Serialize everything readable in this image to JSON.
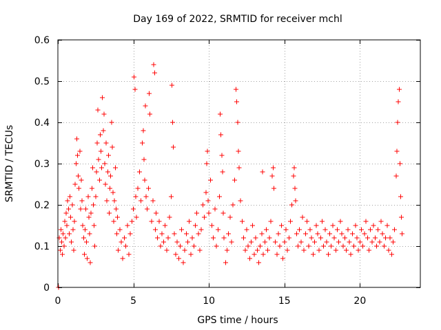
{
  "chart_data": {
    "type": "scatter",
    "title": "Day 169 of 2022, SRMTID for receiver mchl",
    "xlabel": "GPS time / hours",
    "ylabel": "SRMTID / TECUs",
    "xlim": [
      0,
      24
    ],
    "ylim": [
      0,
      0.6
    ],
    "xticks": [
      0,
      5,
      10,
      15,
      20
    ],
    "yticks": [
      0,
      0.1,
      0.2,
      0.3,
      0.4,
      0.5,
      0.6
    ],
    "xtick_labels": [
      "0",
      "5",
      "10",
      "15",
      "20"
    ],
    "ytick_labels": [
      "0",
      "0.1",
      "0.2",
      "0.3",
      "0.4",
      "0.5",
      "0.6"
    ],
    "grid": true,
    "marker": "+",
    "color": "#ff0000",
    "series": [
      {
        "name": "SRMTID",
        "points": [
          [
            0.05,
            0.0
          ],
          [
            0.1,
            0.12
          ],
          [
            0.15,
            0.09
          ],
          [
            0.2,
            0.14
          ],
          [
            0.25,
            0.11
          ],
          [
            0.3,
            0.08
          ],
          [
            0.35,
            0.13
          ],
          [
            0.4,
            0.1
          ],
          [
            0.45,
            0.16
          ],
          [
            0.5,
            0.12
          ],
          [
            0.55,
            0.18
          ],
          [
            0.6,
            0.15
          ],
          [
            0.65,
            0.21
          ],
          [
            0.7,
            0.19
          ],
          [
            0.75,
            0.13
          ],
          [
            0.8,
            0.22
          ],
          [
            0.85,
            0.17
          ],
          [
            0.9,
            0.11
          ],
          [
            0.95,
            0.2
          ],
          [
            1.0,
            0.14
          ],
          [
            1.05,
            0.09
          ],
          [
            1.1,
            0.16
          ],
          [
            1.15,
            0.25
          ],
          [
            1.2,
            0.3
          ],
          [
            1.25,
            0.36
          ],
          [
            1.3,
            0.32
          ],
          [
            1.35,
            0.27
          ],
          [
            1.4,
            0.24
          ],
          [
            1.45,
            0.33
          ],
          [
            1.5,
            0.19
          ],
          [
            1.55,
            0.26
          ],
          [
            1.6,
            0.21
          ],
          [
            1.65,
            0.15
          ],
          [
            1.7,
            0.12
          ],
          [
            1.75,
            0.08
          ],
          [
            1.8,
            0.14
          ],
          [
            1.85,
            0.19
          ],
          [
            1.9,
            0.11
          ],
          [
            1.95,
            0.07
          ],
          [
            2.0,
            0.22
          ],
          [
            2.05,
            0.17
          ],
          [
            2.1,
            0.13
          ],
          [
            2.15,
            0.06
          ],
          [
            2.2,
            0.18
          ],
          [
            2.25,
            0.24
          ],
          [
            2.3,
            0.29
          ],
          [
            2.35,
            0.2
          ],
          [
            2.4,
            0.15
          ],
          [
            2.45,
            0.1
          ],
          [
            2.5,
            0.22
          ],
          [
            2.55,
            0.28
          ],
          [
            2.6,
            0.35
          ],
          [
            2.65,
            0.43
          ],
          [
            2.7,
            0.31
          ],
          [
            2.75,
            0.26
          ],
          [
            2.8,
            0.37
          ],
          [
            2.85,
            0.33
          ],
          [
            2.9,
            0.29
          ],
          [
            2.95,
            0.46
          ],
          [
            3.0,
            0.38
          ],
          [
            3.05,
            0.42
          ],
          [
            3.1,
            0.3
          ],
          [
            3.15,
            0.25
          ],
          [
            3.2,
            0.35
          ],
          [
            3.25,
            0.21
          ],
          [
            3.3,
            0.28
          ],
          [
            3.35,
            0.32
          ],
          [
            3.4,
            0.18
          ],
          [
            3.45,
            0.24
          ],
          [
            3.5,
            0.27
          ],
          [
            3.55,
            0.4
          ],
          [
            3.6,
            0.34
          ],
          [
            3.65,
            0.23
          ],
          [
            3.7,
            0.16
          ],
          [
            3.75,
            0.21
          ],
          [
            3.8,
            0.29
          ],
          [
            3.85,
            0.19
          ],
          [
            3.9,
            0.13
          ],
          [
            3.95,
            0.17
          ],
          [
            4.0,
            0.09
          ],
          [
            4.1,
            0.14
          ],
          [
            4.2,
            0.11
          ],
          [
            4.3,
            0.07
          ],
          [
            4.4,
            0.12
          ],
          [
            4.5,
            0.1
          ],
          [
            4.6,
            0.15
          ],
          [
            4.7,
            0.08
          ],
          [
            4.8,
            0.13
          ],
          [
            4.9,
            0.16
          ],
          [
            5.0,
            0.19
          ],
          [
            5.05,
            0.51
          ],
          [
            5.1,
            0.48
          ],
          [
            5.15,
            0.22
          ],
          [
            5.2,
            0.17
          ],
          [
            5.3,
            0.24
          ],
          [
            5.4,
            0.28
          ],
          [
            5.5,
            0.21
          ],
          [
            5.6,
            0.35
          ],
          [
            5.65,
            0.38
          ],
          [
            5.7,
            0.31
          ],
          [
            5.75,
            0.26
          ],
          [
            5.8,
            0.44
          ],
          [
            5.85,
            0.22
          ],
          [
            5.9,
            0.19
          ],
          [
            6.0,
            0.24
          ],
          [
            6.05,
            0.47
          ],
          [
            6.1,
            0.42
          ],
          [
            6.2,
            0.16
          ],
          [
            6.3,
            0.21
          ],
          [
            6.35,
            0.54
          ],
          [
            6.4,
            0.52
          ],
          [
            6.45,
            0.14
          ],
          [
            6.5,
            0.18
          ],
          [
            6.6,
            0.12
          ],
          [
            6.7,
            0.16
          ],
          [
            6.8,
            0.1
          ],
          [
            6.9,
            0.13
          ],
          [
            7.0,
            0.11
          ],
          [
            7.1,
            0.15
          ],
          [
            7.2,
            0.09
          ],
          [
            7.3,
            0.12
          ],
          [
            7.4,
            0.17
          ],
          [
            7.5,
            0.22
          ],
          [
            7.55,
            0.49
          ],
          [
            7.6,
            0.4
          ],
          [
            7.65,
            0.34
          ],
          [
            7.7,
            0.13
          ],
          [
            7.8,
            0.08
          ],
          [
            7.9,
            0.11
          ],
          [
            8.0,
            0.07
          ],
          [
            8.1,
            0.1
          ],
          [
            8.2,
            0.14
          ],
          [
            8.3,
            0.06
          ],
          [
            8.4,
            0.09
          ],
          [
            8.5,
            0.13
          ],
          [
            8.6,
            0.11
          ],
          [
            8.7,
            0.16
          ],
          [
            8.8,
            0.08
          ],
          [
            8.9,
            0.12
          ],
          [
            9.0,
            0.1
          ],
          [
            9.1,
            0.15
          ],
          [
            9.2,
            0.18
          ],
          [
            9.3,
            0.13
          ],
          [
            9.4,
            0.09
          ],
          [
            9.5,
            0.14
          ],
          [
            9.6,
            0.2
          ],
          [
            9.7,
            0.17
          ],
          [
            9.8,
            0.23
          ],
          [
            9.85,
            0.3
          ],
          [
            9.9,
            0.33
          ],
          [
            9.95,
            0.21
          ],
          [
            10.0,
            0.18
          ],
          [
            10.1,
            0.26
          ],
          [
            10.2,
            0.15
          ],
          [
            10.3,
            0.12
          ],
          [
            10.4,
            0.19
          ],
          [
            10.5,
            0.1
          ],
          [
            10.6,
            0.14
          ],
          [
            10.7,
            0.22
          ],
          [
            10.75,
            0.42
          ],
          [
            10.8,
            0.37
          ],
          [
            10.85,
            0.32
          ],
          [
            10.9,
            0.28
          ],
          [
            10.95,
            0.18
          ],
          [
            11.0,
            0.12
          ],
          [
            11.1,
            0.06
          ],
          [
            11.2,
            0.09
          ],
          [
            11.3,
            0.13
          ],
          [
            11.4,
            0.17
          ],
          [
            11.5,
            0.11
          ],
          [
            11.6,
            0.2
          ],
          [
            11.7,
            0.26
          ],
          [
            11.8,
            0.48
          ],
          [
            11.85,
            0.45
          ],
          [
            11.9,
            0.4
          ],
          [
            11.95,
            0.33
          ],
          [
            12.0,
            0.29
          ],
          [
            12.1,
            0.21
          ],
          [
            12.2,
            0.16
          ],
          [
            12.3,
            0.12
          ],
          [
            12.4,
            0.09
          ],
          [
            12.5,
            0.14
          ],
          [
            12.6,
            0.1
          ],
          [
            12.7,
            0.07
          ],
          [
            12.8,
            0.11
          ],
          [
            12.9,
            0.15
          ],
          [
            13.0,
            0.08
          ],
          [
            13.1,
            0.12
          ],
          [
            13.2,
            0.09
          ],
          [
            13.3,
            0.06
          ],
          [
            13.4,
            0.1
          ],
          [
            13.5,
            0.13
          ],
          [
            13.55,
            0.28
          ],
          [
            13.6,
            0.08
          ],
          [
            13.7,
            0.11
          ],
          [
            13.8,
            0.14
          ],
          [
            13.9,
            0.09
          ],
          [
            14.0,
            0.12
          ],
          [
            14.1,
            0.16
          ],
          [
            14.2,
            0.27
          ],
          [
            14.25,
            0.29
          ],
          [
            14.3,
            0.24
          ],
          [
            14.4,
            0.11
          ],
          [
            14.5,
            0.08
          ],
          [
            14.6,
            0.13
          ],
          [
            14.7,
            0.1
          ],
          [
            14.8,
            0.15
          ],
          [
            14.9,
            0.07
          ],
          [
            15.0,
            0.11
          ],
          [
            15.1,
            0.14
          ],
          [
            15.2,
            0.09
          ],
          [
            15.3,
            0.12
          ],
          [
            15.4,
            0.16
          ],
          [
            15.5,
            0.2
          ],
          [
            15.6,
            0.27
          ],
          [
            15.65,
            0.29
          ],
          [
            15.7,
            0.24
          ],
          [
            15.75,
            0.21
          ],
          [
            15.8,
            0.13
          ],
          [
            15.9,
            0.1
          ],
          [
            16.0,
            0.14
          ],
          [
            16.1,
            0.11
          ],
          [
            16.2,
            0.17
          ],
          [
            16.3,
            0.09
          ],
          [
            16.4,
            0.13
          ],
          [
            16.5,
            0.16
          ],
          [
            16.6,
            0.1
          ],
          [
            16.7,
            0.14
          ],
          [
            16.8,
            0.12
          ],
          [
            16.9,
            0.08
          ],
          [
            17.0,
            0.11
          ],
          [
            17.1,
            0.15
          ],
          [
            17.2,
            0.13
          ],
          [
            17.3,
            0.09
          ],
          [
            17.4,
            0.12
          ],
          [
            17.5,
            0.16
          ],
          [
            17.6,
            0.1
          ],
          [
            17.7,
            0.14
          ],
          [
            17.8,
            0.11
          ],
          [
            17.9,
            0.08
          ],
          [
            18.0,
            0.13
          ],
          [
            18.1,
            0.1
          ],
          [
            18.2,
            0.15
          ],
          [
            18.3,
            0.12
          ],
          [
            18.4,
            0.09
          ],
          [
            18.5,
            0.14
          ],
          [
            18.6,
            0.11
          ],
          [
            18.7,
            0.16
          ],
          [
            18.8,
            0.13
          ],
          [
            18.9,
            0.1
          ],
          [
            19.0,
            0.12
          ],
          [
            19.1,
            0.09
          ],
          [
            19.2,
            0.14
          ],
          [
            19.3,
            0.11
          ],
          [
            19.4,
            0.08
          ],
          [
            19.5,
            0.13
          ],
          [
            19.6,
            0.1
          ],
          [
            19.7,
            0.15
          ],
          [
            19.8,
            0.12
          ],
          [
            19.9,
            0.09
          ],
          [
            20.0,
            0.11
          ],
          [
            20.1,
            0.14
          ],
          [
            20.2,
            0.1
          ],
          [
            20.3,
            0.13
          ],
          [
            20.4,
            0.16
          ],
          [
            20.5,
            0.12
          ],
          [
            20.6,
            0.09
          ],
          [
            20.7,
            0.14
          ],
          [
            20.8,
            0.11
          ],
          [
            20.9,
            0.15
          ],
          [
            21.0,
            0.12
          ],
          [
            21.1,
            0.1
          ],
          [
            21.2,
            0.14
          ],
          [
            21.3,
            0.11
          ],
          [
            21.4,
            0.16
          ],
          [
            21.5,
            0.13
          ],
          [
            21.6,
            0.1
          ],
          [
            21.7,
            0.12
          ],
          [
            21.8,
            0.15
          ],
          [
            21.9,
            0.09
          ],
          [
            22.0,
            0.12
          ],
          [
            22.1,
            0.08
          ],
          [
            22.2,
            0.11
          ],
          [
            22.3,
            0.14
          ],
          [
            22.4,
            0.27
          ],
          [
            22.45,
            0.33
          ],
          [
            22.5,
            0.4
          ],
          [
            22.55,
            0.45
          ],
          [
            22.6,
            0.48
          ],
          [
            22.65,
            0.3
          ],
          [
            22.7,
            0.22
          ],
          [
            22.75,
            0.17
          ],
          [
            22.8,
            0.13
          ]
        ]
      }
    ]
  }
}
